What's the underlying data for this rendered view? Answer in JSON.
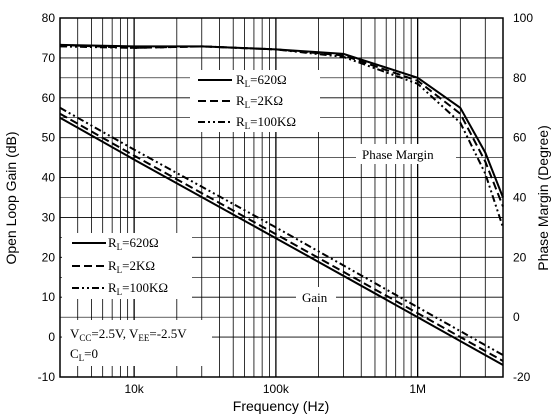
{
  "chart_data": {
    "type": "line",
    "xlabel": "Frequency (Hz)",
    "ylabel": "Open Loop Gain (dB)",
    "y2label": "Phase Margin (Degree)",
    "xscale": "log",
    "xlim": [
      3000,
      4000000
    ],
    "ylim": [
      -10,
      80
    ],
    "y2lim": [
      -20,
      100
    ],
    "grid": true,
    "x_tick_labels": [
      {
        "value": 10000,
        "label": "10k"
      },
      {
        "value": 100000,
        "label": "100k"
      },
      {
        "value": 1000000,
        "label": "1M"
      }
    ],
    "y_ticks": [
      -10,
      0,
      10,
      20,
      30,
      40,
      50,
      60,
      70,
      80
    ],
    "y2_ticks": [
      -20,
      0,
      20,
      40,
      60,
      80,
      100
    ],
    "annotations": {
      "phase_margin": "Phase Margin",
      "gain": "Gain"
    },
    "conditions": {
      "line1": {
        "vcc_main": "V",
        "vcc_sub": "CC",
        "vcc_mid": "=2.5V, V",
        "vee_sub": "EE",
        "vee_val": "=-2.5V"
      },
      "line2": {
        "cl_main": "C",
        "cl_sub": "L",
        "cl_val": "=0"
      }
    },
    "legend_phase": [
      {
        "main": "R",
        "sub": "L",
        "val": "=620Ω"
      },
      {
        "main": "R",
        "sub": "L",
        "val": "=2KΩ"
      },
      {
        "main": "R",
        "sub": "L",
        "val": "=100KΩ"
      }
    ],
    "legend_gain": [
      {
        "main": "R",
        "sub": "L",
        "val": "=620Ω"
      },
      {
        "main": "R",
        "sub": "L",
        "val": "=2KΩ"
      },
      {
        "main": "R",
        "sub": "L",
        "val": "=100KΩ"
      }
    ],
    "series": [
      {
        "name": "R_L=620Ω",
        "axis": "gain",
        "style": "solid",
        "x": [
          3000,
          10000,
          100000,
          1000000,
          4000000
        ],
        "y": [
          55,
          44.5,
          24.8,
          5,
          -7
        ]
      },
      {
        "name": "R_L=2KΩ",
        "axis": "gain",
        "style": "dash",
        "x": [
          3000,
          10000,
          100000,
          1000000,
          4000000
        ],
        "y": [
          56,
          45.5,
          25.8,
          6,
          -6
        ]
      },
      {
        "name": "R_L=100KΩ",
        "axis": "gain",
        "style": "dashdot",
        "x": [
          3000,
          10000,
          100000,
          1000000,
          4000000
        ],
        "y": [
          57.5,
          47,
          27.5,
          7.5,
          -4.5
        ]
      },
      {
        "name": "R_L=620Ω",
        "axis": "phase",
        "style": "solid",
        "x": [
          3000,
          10000,
          30000,
          100000,
          300000,
          1000000,
          2000000,
          3000000,
          4000000
        ],
        "y": [
          91,
          90.5,
          90.5,
          89.5,
          88,
          80,
          70,
          55,
          40
        ]
      },
      {
        "name": "R_L=2KΩ",
        "axis": "phase",
        "style": "dash",
        "x": [
          3000,
          10000,
          30000,
          100000,
          300000,
          1000000,
          2000000,
          3000000,
          4000000
        ],
        "y": [
          91,
          90,
          90.5,
          89.5,
          87.5,
          79,
          68,
          52,
          37
        ]
      },
      {
        "name": "R_L=100KΩ",
        "axis": "phase",
        "style": "dashdot",
        "x": [
          3000,
          10000,
          30000,
          100000,
          300000,
          1000000,
          2000000,
          3000000,
          4000000
        ],
        "y": [
          90.5,
          90,
          90.5,
          89.5,
          87,
          78,
          65,
          48,
          30
        ]
      }
    ]
  }
}
